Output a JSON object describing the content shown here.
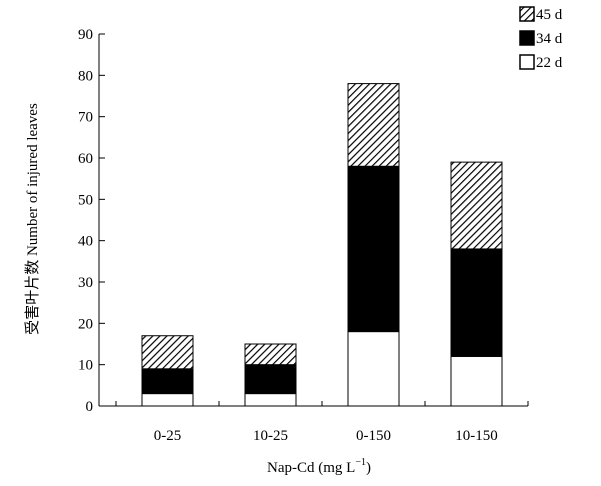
{
  "chart_data": {
    "type": "bar",
    "stacked": true,
    "categories": [
      "0-25",
      "10-25",
      "0-150",
      "10-150"
    ],
    "series": [
      {
        "name": "22 d",
        "values": [
          3,
          3,
          18,
          12
        ],
        "color": "#ffffff",
        "pattern": "solid-white"
      },
      {
        "name": "34 d",
        "values": [
          6,
          7,
          40,
          26
        ],
        "color": "#000000",
        "pattern": "solid-black"
      },
      {
        "name": "45 d",
        "values": [
          8,
          5,
          20,
          21
        ],
        "color": "#000000",
        "pattern": "diagonal-hatch"
      }
    ],
    "ylim": [
      0,
      90
    ],
    "yticks": [
      0,
      10,
      20,
      30,
      40,
      50,
      60,
      70,
      80,
      90
    ],
    "xlabel": {
      "text": "Nap-Cd (mg L",
      "sup": "−1",
      "close": ")"
    },
    "ylabel": "受害叶片数 Number of injured leaves",
    "legend": {
      "position": "top-right",
      "order": [
        "45 d",
        "34 d",
        "22 d"
      ]
    },
    "grid": false
  }
}
